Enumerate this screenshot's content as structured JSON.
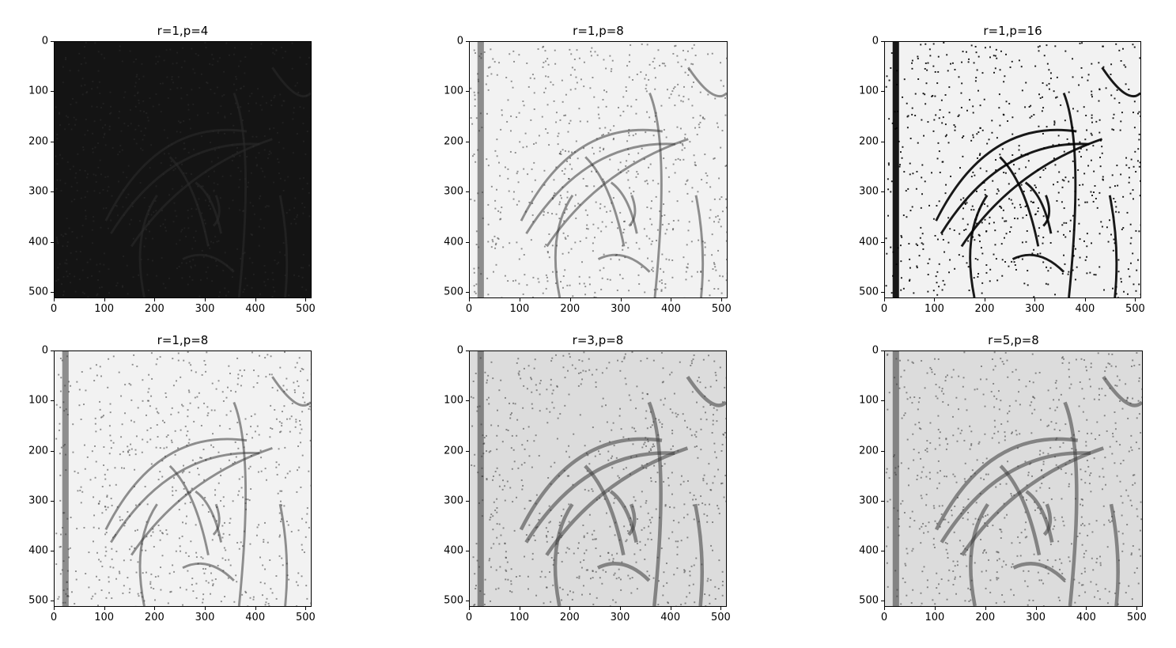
{
  "figure": {
    "panels": [
      {
        "title": "r=1,p=4",
        "style": "dark"
      },
      {
        "title": "r=1,p=8",
        "style": "light"
      },
      {
        "title": "r=1,p=16",
        "style": "contrast"
      },
      {
        "title": "r=1,p=8",
        "style": "light"
      },
      {
        "title": "r=3,p=8",
        "style": "gray"
      },
      {
        "title": "r=5,p=8",
        "style": "gray"
      }
    ],
    "x_ticks": [
      "0",
      "100",
      "200",
      "300",
      "400",
      "500"
    ],
    "y_ticks": [
      "0",
      "100",
      "200",
      "300",
      "400",
      "500"
    ],
    "image_extent": [
      0,
      512
    ],
    "colors": {
      "dark_bg": "#141414",
      "light_bg": "#f2f2f2",
      "gray_bg": "#dcdcdc",
      "ink": "#3a3a3a"
    }
  }
}
